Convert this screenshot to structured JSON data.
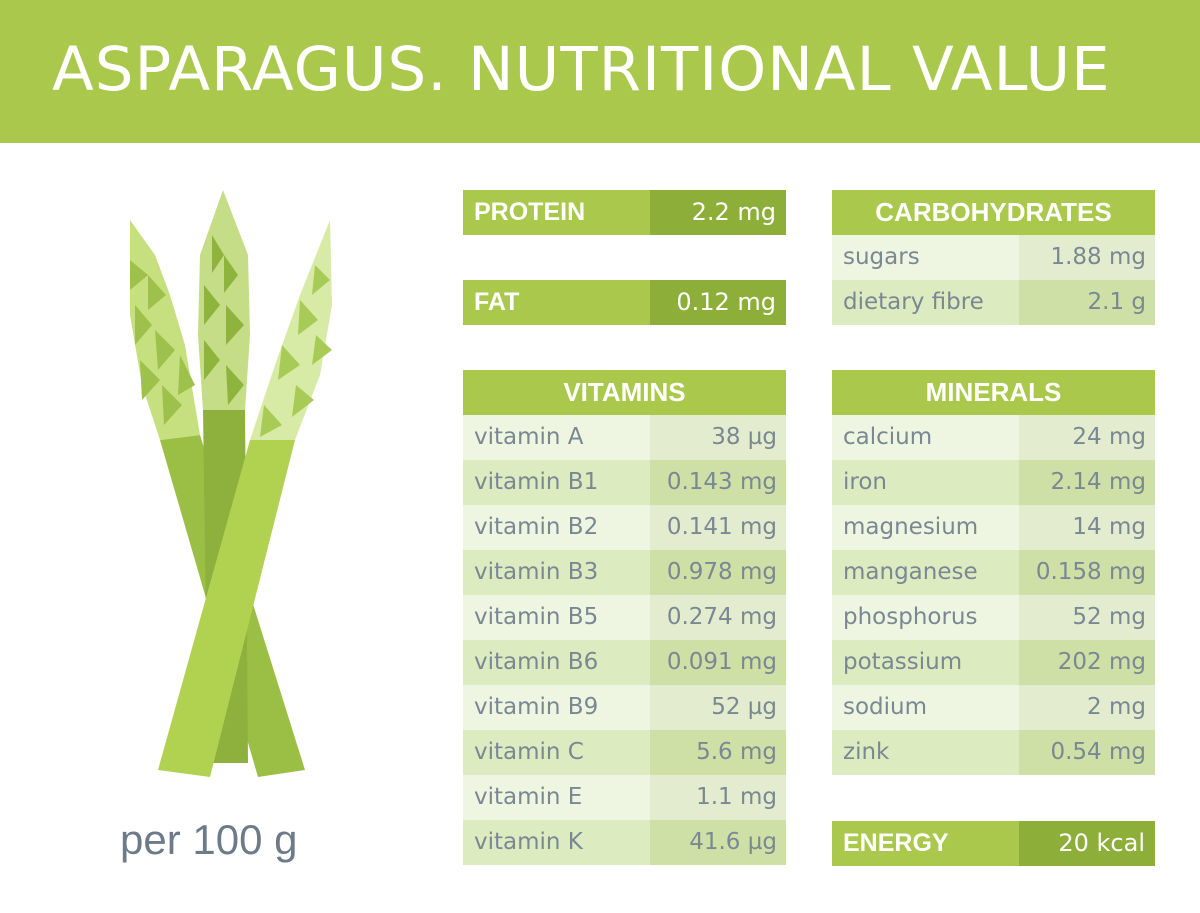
{
  "title": "ASPARAGUS. NUTRITIONAL VALUE",
  "per_label": "per 100 g",
  "protein": {
    "label": "PROTEIN",
    "value": "2.2 mg"
  },
  "fat": {
    "label": "FAT",
    "value": "0.12 mg"
  },
  "energy": {
    "label": "ENERGY",
    "value": "20 kcal"
  },
  "carbohydrates": {
    "title": "CARBOHYDRATES",
    "rows": [
      {
        "name": "sugars",
        "value": "1.88 mg"
      },
      {
        "name": "dietary fibre",
        "value": "2.1 g"
      }
    ]
  },
  "vitamins": {
    "title": "VITAMINS",
    "rows": [
      {
        "name": "vitamin A",
        "value": "38 µg"
      },
      {
        "name": "vitamin B1",
        "value": "0.143 mg"
      },
      {
        "name": "vitamin B2",
        "value": "0.141 mg"
      },
      {
        "name": "vitamin B3",
        "value": "0.978 mg"
      },
      {
        "name": "vitamin B5",
        "value": "0.274 mg"
      },
      {
        "name": "vitamin B6",
        "value": "0.091 mg"
      },
      {
        "name": "vitamin B9",
        "value": "52 µg"
      },
      {
        "name": "vitamin C",
        "value": "5.6 mg"
      },
      {
        "name": "vitamin E",
        "value": "1.1 mg"
      },
      {
        "name": "vitamin K",
        "value": "41.6 µg"
      }
    ]
  },
  "minerals": {
    "title": "MINERALS",
    "rows": [
      {
        "name": "calcium",
        "value": "24 mg"
      },
      {
        "name": "iron",
        "value": "2.14 mg"
      },
      {
        "name": "magnesium",
        "value": "14 mg"
      },
      {
        "name": "manganese",
        "value": "0.158 mg"
      },
      {
        "name": "phosphorus",
        "value": "52 mg"
      },
      {
        "name": "potassium",
        "value": "202 mg"
      },
      {
        "name": "sodium",
        "value": "2 mg"
      },
      {
        "name": "zink",
        "value": "0.54 mg"
      }
    ]
  },
  "colors": {
    "brand_green": "#a9c84c",
    "dark_green": "#8eae3a",
    "text_gray": "#7a8894"
  }
}
